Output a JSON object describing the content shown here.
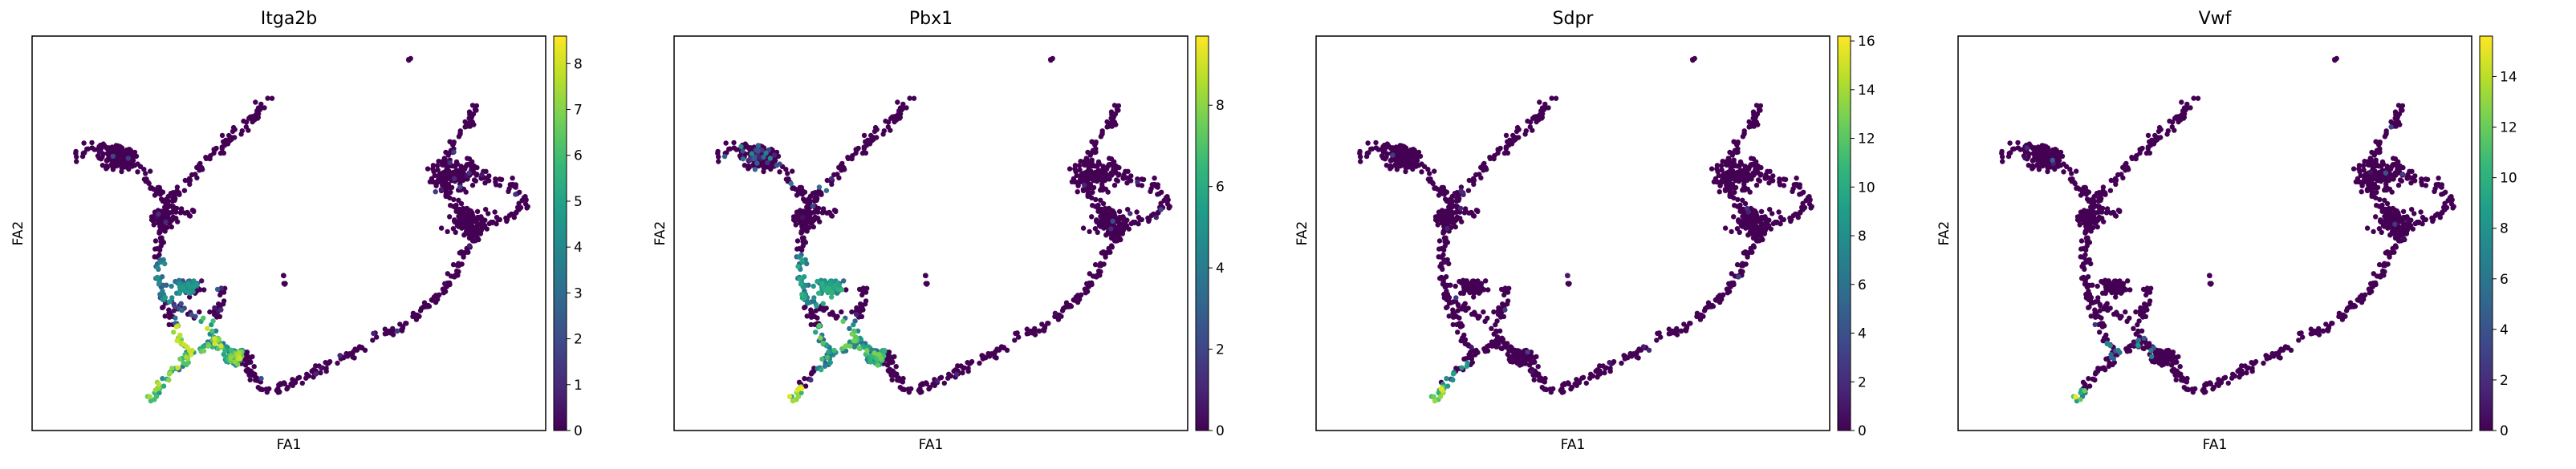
{
  "figure": {
    "panel_count": 4
  },
  "chart_data": [
    {
      "type": "scatter",
      "title": "Itga2b",
      "xlabel": "FA1",
      "ylabel": "FA2",
      "colormap": "viridis",
      "colorbar": {
        "range": [
          0,
          8.6
        ],
        "ticks": [
          "0",
          "1",
          "2",
          "3",
          "4",
          "5",
          "6",
          "7",
          "8"
        ]
      },
      "high_expression_regions": [
        "bottom-left branches",
        "lower junction"
      ]
    },
    {
      "type": "scatter",
      "title": "Pbx1",
      "xlabel": "FA1",
      "ylabel": "FA2",
      "colormap": "viridis",
      "colorbar": {
        "range": [
          0,
          9.7
        ],
        "ticks": [
          "0",
          "2",
          "4",
          "6",
          "8"
        ]
      },
      "high_expression_regions": [
        "bottom-left branches",
        "left cluster"
      ]
    },
    {
      "type": "scatter",
      "title": "Sdpr",
      "xlabel": "FA1",
      "ylabel": "FA2",
      "colormap": "viridis",
      "colorbar": {
        "range": [
          0,
          16.2
        ],
        "ticks": [
          "0",
          "2",
          "4",
          "6",
          "8",
          "10",
          "12",
          "14",
          "16"
        ]
      },
      "high_expression_regions": [
        "bottom-left branch tip"
      ]
    },
    {
      "type": "scatter",
      "title": "Vwf",
      "xlabel": "FA1",
      "ylabel": "FA2",
      "colormap": "viridis",
      "colorbar": {
        "range": [
          0,
          15.6
        ],
        "ticks": [
          "0",
          "2",
          "4",
          "6",
          "8",
          "10",
          "12",
          "14"
        ]
      },
      "high_expression_regions": [
        "bottom-left branch tip"
      ]
    }
  ],
  "colors": {
    "viridis": [
      "#440154",
      "#482878",
      "#3e4989",
      "#31688e",
      "#26828e",
      "#1f9e89",
      "#35b779",
      "#6ece58",
      "#b5de2b",
      "#fde725"
    ],
    "low": "#440154",
    "frame": "#000000"
  }
}
